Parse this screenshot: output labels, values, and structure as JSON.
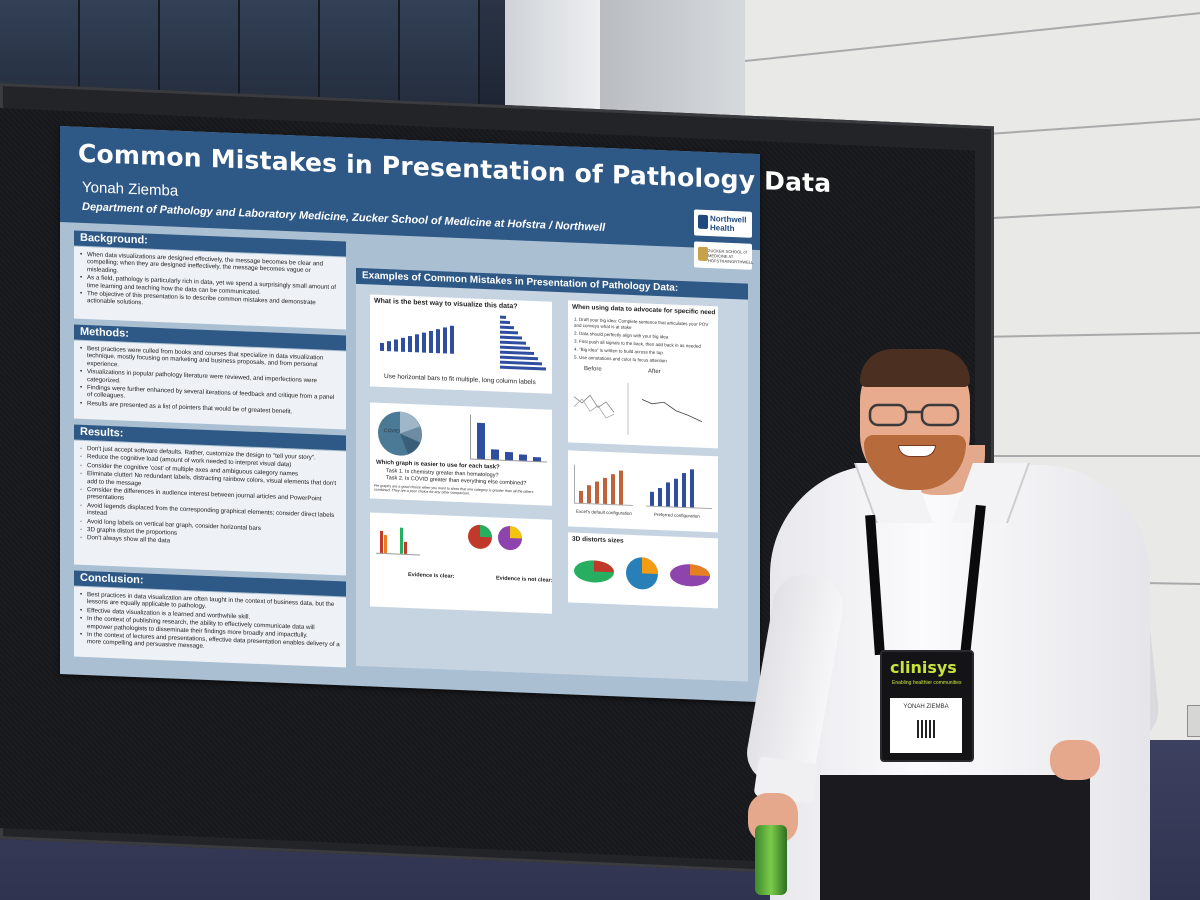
{
  "poster": {
    "title": "Common Mistakes in Presentation of Pathology Data",
    "author": "Yonah Ziemba",
    "department": "Department of Pathology and Laboratory Medicine, Zucker School of Medicine at Hofstra / Northwell",
    "logos": {
      "northwell": "Northwell Health",
      "zucker": "ZUCKER SCHOOL of MEDICINE AT HOFSTRA/NORTHWELL"
    },
    "background": {
      "heading": "Background:",
      "bullets": [
        "When data visualizations are designed effectively, the message becomes be clear and compelling; when they are designed ineffectively, the message becomes vague or misleading.",
        "As a field, pathology is particularly rich in data, yet we spend a surprisingly small amount of time learning and teaching how the data can be communicated.",
        "The objective of this presentation is to describe common mistakes and demonstrate actionable solutions."
      ]
    },
    "methods": {
      "heading": "Methods:",
      "bullets": [
        "Best practices were culled from books and courses that specialize in data visualization technique, mostly focusing on marketing and business proposals, and from personal experience.",
        "Visualizations in popular pathology literature were reviewed, and imperfections were categorized.",
        "Findings were further enhanced by several iterations of feedback and critique from a panel of colleagues.",
        "Results are presented as a list of pointers that would be of greatest benefit."
      ]
    },
    "results": {
      "heading": "Results:",
      "bullets": [
        "Don't just accept software defaults. Rather, customize the design to \"tell your story\".",
        "Reduce the cognitive load (amount of work needed to interpret visual data)",
        "Consider the cognitive 'cost' of multiple axes and ambiguous category names",
        "Eliminate clutter! No redundant labels, distracting rainbow colors, visual elements that don't add to the message",
        "Consider the differences in audience interest between journal articles and PowerPoint presentations",
        "Avoid legends displaced from the corresponding graphical elements; consider direct labels instead",
        "Avoid long labels on vertical bar graph, consider horizontal bars",
        "3D graphs distort the proportions",
        "Don't always show all the data"
      ]
    },
    "conclusion": {
      "heading": "Conclusion:",
      "bullets": [
        "Best practices in data visualization are often taught in the context of business data, but the lessons are equally applicable to pathology.",
        "Effective data visualization is a learned and worthwhile skill.",
        "In the context of publishing research, the ability to effectively communicate data will empower pathologists to disseminate their findings more broadly and impactfully.",
        "In the context of lectures and presentations, effective data presentation enables delivery of a more compelling and persuasive message."
      ]
    },
    "examples": {
      "heading": "Examples of Common Mistakes in Presentation of Pathology Data:",
      "card1": {
        "title": "What is the best way to visualize this data?",
        "caption": "Use horizontal bars to fit multiple, long column labels"
      },
      "card2": {
        "question": "Which graph is easier to use for each task?",
        "task1": "Task 1. Is chemistry greater than hematology?",
        "task2": "Task 2. Is COVID greater than everything else combined?",
        "pie_label": "COVID",
        "note": "Pie graphs are a good choice when you want to show that one category is greater than all the others combined. They are a poor choice for any other comparison."
      },
      "card3": {
        "note1": "Evidence is clear:",
        "note2": "Evidence is not clear:"
      },
      "card4": {
        "title": "When using data to advocate for specific need",
        "steps": [
          "1. Draft your big idea: Complete sentence that articulates your POV and conveys what is at stake",
          "2. Data should perfectly align with your big idea",
          "3. First push all signals to the back, then add back in as needed",
          "4. \"Big idea\" is written to build across the top",
          "5. Use annotations and color to focus attention"
        ],
        "before": "Before",
        "after": "After"
      },
      "card5": {
        "left": "Excel's default configuration",
        "right": "Preferred configuration"
      },
      "card6": {
        "title": "3D distorts sizes"
      }
    }
  },
  "badge": {
    "brand": "clinisys",
    "tagline": "Enabling healthier communities",
    "name": "YONAH ZIEMBA"
  },
  "colors": {
    "poster_blue": "#2e5885",
    "poster_bg": "#aabfd2",
    "badge_green": "#c8e33a"
  }
}
